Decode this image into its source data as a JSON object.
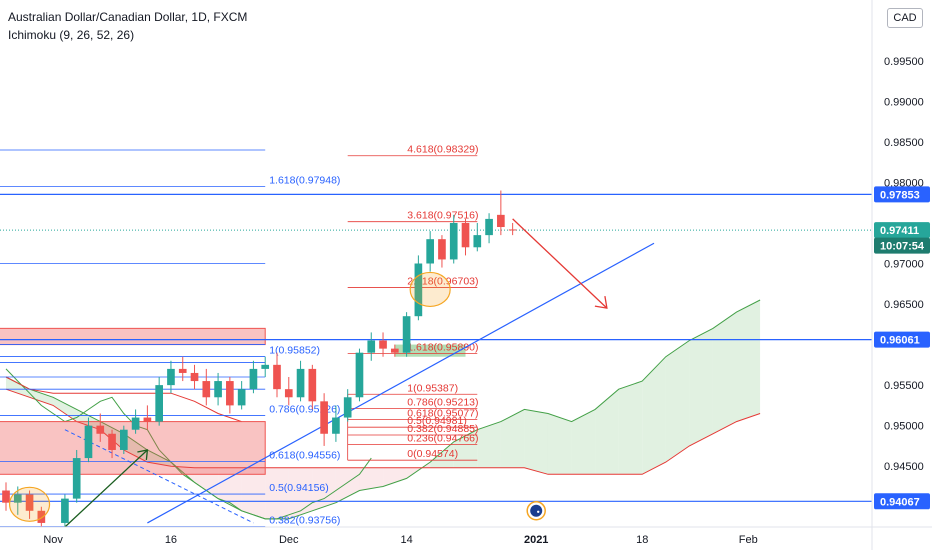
{
  "legend": {
    "symbol": "Australian Dollar/Canadian Dollar, 1D, FXCM",
    "indicator": "Ichimoku (9, 26, 52, 26)"
  },
  "currency_badge": "CAD",
  "colors": {
    "up": "#26a69a",
    "down": "#ef5350",
    "fib_left": "#2962ff",
    "fib_right": "#e53935",
    "trend": "#2962ff",
    "cloud_up": "#c8e6c9",
    "cloud_down": "#f8d7da",
    "span_a": "#43a047",
    "span_b": "#e53935",
    "lagging": "#43a047",
    "conversion": "#e53935",
    "arrow": "#e53935",
    "highlight": "#f5a623"
  },
  "chart_data": {
    "type": "candlestick",
    "y_axis": {
      "ylim": [
        0.9375,
        1.0025
      ],
      "ticks": [
        0.945,
        0.95,
        0.955,
        0.965,
        0.97,
        0.98,
        0.985,
        0.99,
        0.995
      ],
      "tick_labels": [
        "0.94500",
        "0.95000",
        "0.95500",
        "0.96500",
        "0.97000",
        "0.98000",
        "0.98500",
        "0.99000",
        "0.99500"
      ],
      "price_labels": [
        {
          "label": "0.97853",
          "value": 0.97853,
          "style": "line"
        },
        {
          "label": "0.97411",
          "value": 0.97411,
          "style": "last"
        },
        {
          "label": "10:07:54",
          "value": 0.9722,
          "style": "timer"
        },
        {
          "label": "0.96061",
          "value": 0.96061,
          "style": "line"
        },
        {
          "label": "0.94067",
          "value": 0.94067,
          "style": "line"
        }
      ]
    },
    "x_axis": {
      "xlim": [
        -3,
        70
      ],
      "ticks": [
        {
          "label": "Nov",
          "x": 1
        },
        {
          "label": "16",
          "x": 11
        },
        {
          "label": "Dec",
          "x": 21
        },
        {
          "label": "14",
          "x": 31
        },
        {
          "label": "2021",
          "x": 42,
          "bold": true
        },
        {
          "label": "18",
          "x": 51
        },
        {
          "label": "Feb",
          "x": 60
        }
      ]
    },
    "candles": [
      {
        "x": -3,
        "o": 0.942,
        "h": 0.943,
        "l": 0.9395,
        "c": 0.9405
      },
      {
        "x": -2,
        "o": 0.9405,
        "h": 0.9425,
        "l": 0.939,
        "c": 0.9415
      },
      {
        "x": -1,
        "o": 0.9415,
        "h": 0.942,
        "l": 0.9385,
        "c": 0.9395
      },
      {
        "x": 0,
        "o": 0.9395,
        "h": 0.94,
        "l": 0.937,
        "c": 0.938
      },
      {
        "x": 2,
        "o": 0.938,
        "h": 0.9415,
        "l": 0.9375,
        "c": 0.941
      },
      {
        "x": 3,
        "o": 0.941,
        "h": 0.947,
        "l": 0.9405,
        "c": 0.946
      },
      {
        "x": 4,
        "o": 0.946,
        "h": 0.951,
        "l": 0.9455,
        "c": 0.95
      },
      {
        "x": 5,
        "o": 0.95,
        "h": 0.9515,
        "l": 0.948,
        "c": 0.949
      },
      {
        "x": 6,
        "o": 0.949,
        "h": 0.9495,
        "l": 0.946,
        "c": 0.947
      },
      {
        "x": 7,
        "o": 0.947,
        "h": 0.95,
        "l": 0.9465,
        "c": 0.9495
      },
      {
        "x": 8,
        "o": 0.9495,
        "h": 0.952,
        "l": 0.949,
        "c": 0.951
      },
      {
        "x": 9,
        "o": 0.951,
        "h": 0.9525,
        "l": 0.9495,
        "c": 0.9505
      },
      {
        "x": 10,
        "o": 0.9505,
        "h": 0.956,
        "l": 0.95,
        "c": 0.955
      },
      {
        "x": 11,
        "o": 0.955,
        "h": 0.958,
        "l": 0.954,
        "c": 0.957
      },
      {
        "x": 12,
        "o": 0.957,
        "h": 0.9585,
        "l": 0.9555,
        "c": 0.9565
      },
      {
        "x": 13,
        "o": 0.9565,
        "h": 0.9575,
        "l": 0.9545,
        "c": 0.9555
      },
      {
        "x": 14,
        "o": 0.9555,
        "h": 0.957,
        "l": 0.9525,
        "c": 0.9535
      },
      {
        "x": 15,
        "o": 0.9535,
        "h": 0.9565,
        "l": 0.9525,
        "c": 0.9555
      },
      {
        "x": 16,
        "o": 0.9555,
        "h": 0.956,
        "l": 0.9515,
        "c": 0.9525
      },
      {
        "x": 17,
        "o": 0.9525,
        "h": 0.9555,
        "l": 0.952,
        "c": 0.9545
      },
      {
        "x": 18,
        "o": 0.9545,
        "h": 0.958,
        "l": 0.954,
        "c": 0.957
      },
      {
        "x": 19,
        "o": 0.957,
        "h": 0.9585,
        "l": 0.956,
        "c": 0.9575
      },
      {
        "x": 20,
        "o": 0.9575,
        "h": 0.959,
        "l": 0.9535,
        "c": 0.9545
      },
      {
        "x": 21,
        "o": 0.9545,
        "h": 0.956,
        "l": 0.9525,
        "c": 0.9535
      },
      {
        "x": 22,
        "o": 0.9535,
        "h": 0.958,
        "l": 0.953,
        "c": 0.957
      },
      {
        "x": 23,
        "o": 0.957,
        "h": 0.9575,
        "l": 0.952,
        "c": 0.953
      },
      {
        "x": 24,
        "o": 0.953,
        "h": 0.954,
        "l": 0.9475,
        "c": 0.949
      },
      {
        "x": 25,
        "o": 0.949,
        "h": 0.9525,
        "l": 0.948,
        "c": 0.951
      },
      {
        "x": 26,
        "o": 0.951,
        "h": 0.9545,
        "l": 0.9505,
        "c": 0.9535
      },
      {
        "x": 27,
        "o": 0.9535,
        "h": 0.9595,
        "l": 0.953,
        "c": 0.959
      },
      {
        "x": 28,
        "o": 0.959,
        "h": 0.9615,
        "l": 0.958,
        "c": 0.9605
      },
      {
        "x": 29,
        "o": 0.9605,
        "h": 0.9615,
        "l": 0.9585,
        "c": 0.9595
      },
      {
        "x": 30,
        "o": 0.9595,
        "h": 0.96,
        "l": 0.9585,
        "c": 0.959
      },
      {
        "x": 31,
        "o": 0.959,
        "h": 0.964,
        "l": 0.9585,
        "c": 0.9635
      },
      {
        "x": 32,
        "o": 0.9635,
        "h": 0.971,
        "l": 0.963,
        "c": 0.97
      },
      {
        "x": 33,
        "o": 0.97,
        "h": 0.974,
        "l": 0.969,
        "c": 0.973
      },
      {
        "x": 34,
        "o": 0.973,
        "h": 0.9735,
        "l": 0.9695,
        "c": 0.9705
      },
      {
        "x": 35,
        "o": 0.9705,
        "h": 0.976,
        "l": 0.97,
        "c": 0.975
      },
      {
        "x": 36,
        "o": 0.975,
        "h": 0.9755,
        "l": 0.971,
        "c": 0.972
      },
      {
        "x": 37,
        "o": 0.972,
        "h": 0.975,
        "l": 0.9715,
        "c": 0.9735
      },
      {
        "x": 38,
        "o": 0.9735,
        "h": 0.9762,
        "l": 0.9725,
        "c": 0.9755
      },
      {
        "x": 39,
        "o": 0.976,
        "h": 0.979,
        "l": 0.9735,
        "c": 0.9745
      },
      {
        "x": 40,
        "o": 0.9742,
        "h": 0.975,
        "l": 0.9735,
        "c": 0.9741
      }
    ],
    "fib_left": {
      "x_start": -3,
      "x_end": 19,
      "levels": [
        {
          "label": "1.618(0.97948)",
          "value": 0.97948
        },
        {
          "label": "1(0.95852)",
          "value": 0.95852
        },
        {
          "label": "0.786(0.95126)",
          "value": 0.95126
        },
        {
          "label": "0.618(0.94556)",
          "value": 0.94556
        },
        {
          "label": "0.5(0.94156)",
          "value": 0.94156
        },
        {
          "label": "0.382(0.93756)",
          "value": 0.93756
        }
      ],
      "extra_lines": [
        0.984,
        0.97,
        0.96,
        0.9578,
        0.956,
        0.9545
      ],
      "zone": {
        "from": 0.96,
        "to": 0.962,
        "x_end": 19
      }
    },
    "fib_right": {
      "x_start": 26,
      "x_end": 37,
      "levels": [
        {
          "label": "4.618(0.98329)",
          "value": 0.98329
        },
        {
          "label": "3.618(0.97516)",
          "value": 0.97516
        },
        {
          "label": "2.618(0.96703)",
          "value": 0.96703
        },
        {
          "label": "1.618(0.95890)",
          "value": 0.9589
        },
        {
          "label": "1(0.95387)",
          "value": 0.95387
        },
        {
          "label": "0.786(0.95213)",
          "value": 0.95213
        },
        {
          "label": "0.618(0.95077)",
          "value": 0.95077
        },
        {
          "label": "0.5(0.94981)",
          "value": 0.94981
        },
        {
          "label": "0.382(0.94885)",
          "value": 0.94885
        },
        {
          "label": "0.236(0.94766)",
          "value": 0.94766
        },
        {
          "label": "0(0.94574)",
          "value": 0.94574
        }
      ]
    },
    "horizontal_lines": [
      0.97853,
      0.96061,
      0.94067
    ],
    "trendline": {
      "x1": 9,
      "y1": 0.938,
      "x2": 52,
      "y2": 0.9725
    },
    "projection_arrow": {
      "x1": 40,
      "y1": 0.9755,
      "x2": 48,
      "y2": 0.9645
    },
    "cloud": {
      "x": [
        -3,
        -1,
        1,
        3,
        5,
        7,
        9,
        11,
        13,
        15,
        17,
        19,
        21,
        23,
        25,
        27,
        29,
        31,
        33,
        35,
        37,
        39,
        41,
        43,
        45,
        47,
        49,
        51,
        53,
        55,
        57,
        59,
        61
      ],
      "span_a": [
        0.956,
        0.9545,
        0.9535,
        0.952,
        0.9505,
        0.949,
        0.947,
        0.9455,
        0.943,
        0.941,
        0.9395,
        0.9385,
        0.9385,
        0.9395,
        0.9405,
        0.942,
        0.9425,
        0.9435,
        0.9455,
        0.948,
        0.9495,
        0.9505,
        0.952,
        0.9515,
        0.9505,
        0.952,
        0.9545,
        0.9555,
        0.9585,
        0.9605,
        0.962,
        0.964,
        0.9655
      ],
      "span_b": [
        0.9545,
        0.9535,
        0.9525,
        0.9505,
        0.9495,
        0.947,
        0.9455,
        0.945,
        0.9448,
        0.9448,
        0.9448,
        0.9448,
        0.9448,
        0.9448,
        0.9448,
        0.9448,
        0.9448,
        0.9448,
        0.9448,
        0.9448,
        0.9448,
        0.9448,
        0.9448,
        0.944,
        0.944,
        0.944,
        0.944,
        0.944,
        0.9455,
        0.9475,
        0.949,
        0.9505,
        0.9515
      ]
    },
    "lagging_span": {
      "x": [
        -3,
        -2,
        -1,
        0,
        1,
        2,
        3,
        4,
        5,
        6,
        7,
        8,
        9,
        10,
        11,
        12,
        13,
        14,
        15,
        16,
        17,
        18,
        19,
        20,
        21,
        22,
        23,
        24,
        25,
        26,
        27,
        28
      ],
      "y": [
        0.957,
        0.9555,
        0.954,
        0.9525,
        0.9515,
        0.9505,
        0.951,
        0.952,
        0.953,
        0.9535,
        0.9515,
        0.95,
        0.9495,
        0.947,
        0.9455,
        0.944,
        0.943,
        0.942,
        0.941,
        0.9405,
        0.9395,
        0.939,
        0.9385,
        0.9385,
        0.939,
        0.9395,
        0.9405,
        0.941,
        0.942,
        0.943,
        0.944,
        0.946
      ]
    },
    "conversion_line": {
      "x": [
        -3,
        -1,
        1,
        3,
        5,
        7,
        9,
        11,
        13,
        15,
        17
      ],
      "y": [
        0.956,
        0.9545,
        0.954,
        0.954,
        0.954,
        0.954,
        0.954,
        0.954,
        0.953,
        0.9515,
        0.9505
      ]
    },
    "dashed_line": {
      "x1": 2,
      "y1": 0.9495,
      "x2": 18,
      "y2": 0.938
    },
    "left_zone": {
      "x1": -3,
      "x2": 19,
      "from": 0.944,
      "to": 0.9505
    },
    "highlight_circles": [
      {
        "x": -1,
        "y": 0.9403
      },
      {
        "x": 33,
        "y": 0.9668
      }
    ],
    "up_arrow": {
      "x1": 2,
      "y1": 0.9375,
      "x2": 9,
      "y2": 0.947
    },
    "green_zone": {
      "x1": 30,
      "x2": 36,
      "from": 0.9585,
      "to": 0.96
    },
    "event_marker": {
      "x": 42,
      "y": 0.9395
    }
  }
}
